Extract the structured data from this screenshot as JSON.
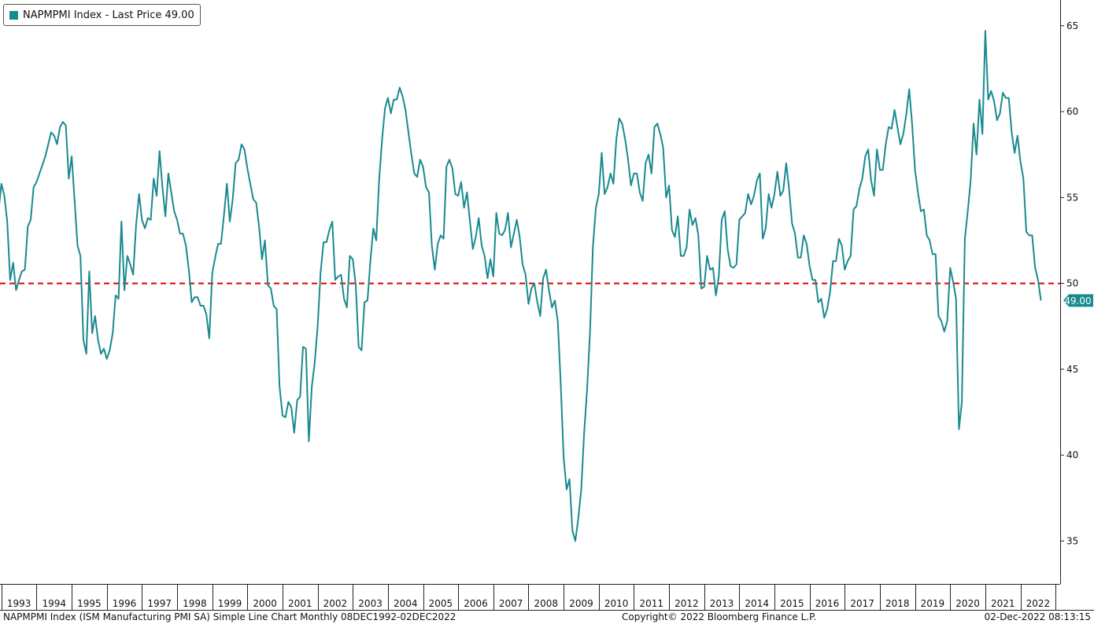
{
  "legend": {
    "label": "NAPMPMI Index - Last Price 49.00",
    "color": "#1a8a90"
  },
  "footer": {
    "left": "NAPMPMI Index (ISM Manufacturing PMI SA) Simple Line Chart  Monthly 08DEC1992-02DEC2022",
    "center": "Copyright© 2022 Bloomberg Finance L.P.",
    "right": "02-Dec-2022 08:13:15"
  },
  "chart_data": {
    "type": "line",
    "title": "",
    "xlabel": "",
    "ylabel": "",
    "ylim": [
      32.5,
      66.5
    ],
    "xlim": [
      1992.96,
      2023.13
    ],
    "yticks": [
      35,
      40,
      45,
      50,
      55,
      60,
      65
    ],
    "xticks": [
      "1993",
      "1994",
      "1995",
      "1996",
      "1997",
      "1998",
      "1999",
      "2000",
      "2001",
      "2002",
      "2003",
      "2004",
      "2005",
      "2006",
      "2007",
      "2008",
      "2009",
      "2010",
      "2011",
      "2012",
      "2013",
      "2014",
      "2015",
      "2016",
      "2017",
      "2018",
      "2019",
      "2020",
      "2021",
      "2022"
    ],
    "reference_line": {
      "value": 50,
      "style": "dashed",
      "color": "#e00000"
    },
    "last_value_label": "49.00",
    "series_color": "#1a8a90",
    "series": [
      {
        "name": "NAPMPMI Index",
        "start": "1992-12",
        "frequency": "monthly",
        "values": [
          54.2,
          55.8,
          55.1,
          53.6,
          50.2,
          51.2,
          49.6,
          50.2,
          50.7,
          50.8,
          53.3,
          53.7,
          55.6,
          55.9,
          56.4,
          56.9,
          57.4,
          58.1,
          58.8,
          58.6,
          58.1,
          59.1,
          59.4,
          59.2,
          56.1,
          57.4,
          54.8,
          52.2,
          51.6,
          46.7,
          45.9,
          50.7,
          47.1,
          48.1,
          46.7,
          45.9,
          46.2,
          45.6,
          46.1,
          47.1,
          49.3,
          49.1,
          53.6,
          49.6,
          51.6,
          51.1,
          50.5,
          53.4,
          55.2,
          53.7,
          53.2,
          53.8,
          53.7,
          56.1,
          55.1,
          57.7,
          55.6,
          53.9,
          56.4,
          55.3,
          54.2,
          53.7,
          52.9,
          52.9,
          52.2,
          50.8,
          48.9,
          49.2,
          49.2,
          48.7,
          48.7,
          48.2,
          46.8,
          50.6,
          51.5,
          52.3,
          52.3,
          54.0,
          55.8,
          53.6,
          54.9,
          57.0,
          57.2,
          58.1,
          57.8,
          56.7,
          55.8,
          54.9,
          54.7,
          53.3,
          51.4,
          52.5,
          49.9,
          49.7,
          48.7,
          48.5,
          44.0,
          42.3,
          42.2,
          43.1,
          42.8,
          41.3,
          43.2,
          43.4,
          46.3,
          46.2,
          40.8,
          44.0,
          45.4,
          47.5,
          50.6,
          52.4,
          52.4,
          53.1,
          53.6,
          50.2,
          50.4,
          50.5,
          49.1,
          48.6,
          51.6,
          51.4,
          49.9,
          46.3,
          46.1,
          48.9,
          49.0,
          51.3,
          53.2,
          52.5,
          56.0,
          58.4,
          60.2,
          60.8,
          59.9,
          60.7,
          60.7,
          61.4,
          60.9,
          60.1,
          58.8,
          57.5,
          56.4,
          56.2,
          57.2,
          56.8,
          55.6,
          55.3,
          52.2,
          50.8,
          52.3,
          52.8,
          52.6,
          56.8,
          57.2,
          56.7,
          55.2,
          55.1,
          55.9,
          54.4,
          55.3,
          53.6,
          52.0,
          52.7,
          53.8,
          52.2,
          51.6,
          50.3,
          51.4,
          50.4,
          54.1,
          52.9,
          52.8,
          53.1,
          54.1,
          52.1,
          52.9,
          53.7,
          52.7,
          51.1,
          50.5,
          48.8,
          49.7,
          50.0,
          48.9,
          48.1,
          50.3,
          50.8,
          49.6,
          48.6,
          49.0,
          47.8,
          44.2,
          39.9,
          38.0,
          38.6,
          35.6,
          35.0,
          36.3,
          38.0,
          41.3,
          43.8,
          47.1,
          52.1,
          54.4,
          55.2,
          57.6,
          55.2,
          55.6,
          56.4,
          55.8,
          58.4,
          59.6,
          59.3,
          58.4,
          57.2,
          55.7,
          56.4,
          56.4,
          55.3,
          54.8,
          57.0,
          57.5,
          56.4,
          59.1,
          59.3,
          58.7,
          57.9,
          55.0,
          55.7,
          53.1,
          52.7,
          53.9,
          51.6,
          51.6,
          52.1,
          54.3,
          53.4,
          53.8,
          52.8,
          49.7,
          49.8,
          51.6,
          50.8,
          50.9,
          49.3,
          50.4,
          53.7,
          54.2,
          52.0,
          51.0,
          50.9,
          51.1,
          53.7,
          53.9,
          54.1,
          55.2,
          54.6,
          55.1,
          56.0,
          56.4,
          52.6,
          53.2,
          55.2,
          54.4,
          55.2,
          56.5,
          55.1,
          55.4,
          57.0,
          55.5,
          53.5,
          52.9,
          51.5,
          51.5,
          52.8,
          52.3,
          51.0,
          50.2,
          50.2,
          48.9,
          49.1,
          48.0,
          48.5,
          49.5,
          51.3,
          51.3,
          52.6,
          52.2,
          50.8,
          51.3,
          51.6,
          54.3,
          54.5,
          55.5,
          56.1,
          57.4,
          57.8,
          56.0,
          55.1,
          57.8,
          56.6,
          56.6,
          58.1,
          59.1,
          59.0,
          60.1,
          59.1,
          58.1,
          58.7,
          59.8,
          61.3,
          59.3,
          56.6,
          55.3,
          54.2,
          54.3,
          52.8,
          52.5,
          51.7,
          51.7,
          48.1,
          47.8,
          47.2,
          47.8,
          50.9,
          50.1,
          49.1,
          41.5,
          43.1,
          52.6,
          54.2,
          56.0,
          59.3,
          57.5,
          60.7,
          58.7,
          64.7,
          60.7,
          61.2,
          60.6,
          59.5,
          59.9,
          61.1,
          60.8,
          60.8,
          58.8,
          57.6,
          58.6,
          57.1,
          56.1,
          53.0,
          52.8,
          52.8,
          50.9,
          50.2,
          49.0
        ]
      }
    ]
  }
}
